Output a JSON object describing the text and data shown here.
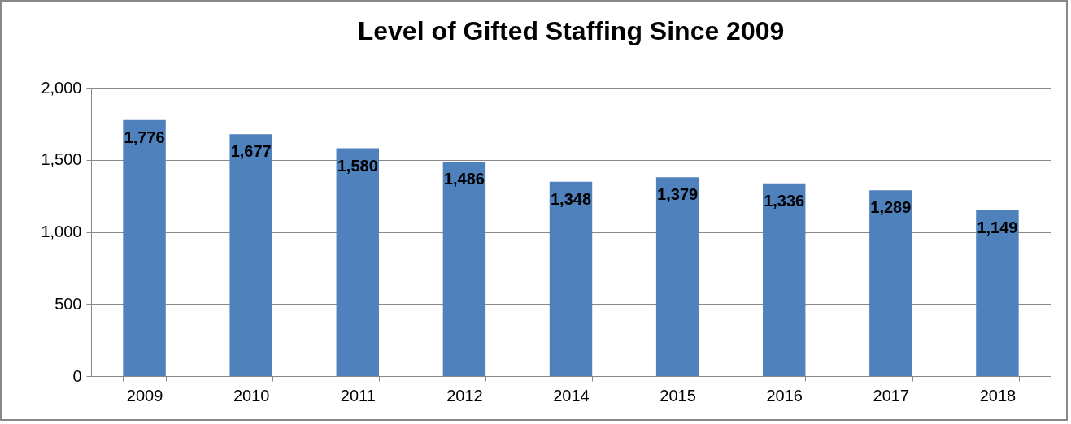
{
  "chart_data": {
    "type": "bar",
    "title": "Level of Gifted Staffing Since 2009",
    "categories": [
      "2009",
      "2010",
      "2011",
      "2012",
      "2014",
      "2015",
      "2016",
      "2017",
      "2018"
    ],
    "values": [
      1776,
      1677,
      1580,
      1486,
      1348,
      1379,
      1336,
      1289,
      1149
    ],
    "value_labels": [
      "1,776",
      "1,677",
      "1,580",
      "1,486",
      "1,348",
      "1,379",
      "1,336",
      "1,289",
      "1,149"
    ],
    "color": "#4f81bd",
    "ylim": [
      0,
      2000
    ],
    "yticks": [
      0,
      {
        "value": 500,
        "label": "500"
      },
      {
        "value": 1000,
        "label": "1,000"
      },
      {
        "value": 1500,
        "label": "1,500"
      },
      {
        "value": 2000,
        "label": "2,000"
      }
    ],
    "grid": "y"
  }
}
